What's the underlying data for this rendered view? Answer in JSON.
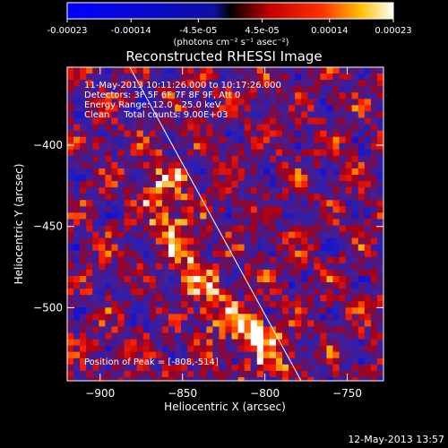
{
  "chart_data": {
    "type": "heatmap",
    "title": "Reconstructed RHESSI Image",
    "xlabel": "Heliocentric X (arcsec)",
    "ylabel": "Heliocentric Y (arcsec)",
    "xlim": [
      -920,
      -728
    ],
    "ylim": [
      -545,
      -352
    ],
    "x_ticks": [
      -900,
      -850,
      -800,
      -750
    ],
    "y_ticks": [
      -400,
      -450,
      -500
    ],
    "colorbar": {
      "range": [
        -0.00023,
        0.00023
      ],
      "tick_values": [
        -0.00023,
        -0.00014,
        -4.5e-05,
        4.5e-05,
        0.00014,
        0.00023
      ],
      "tick_labels": [
        "-0.00023",
        "-0.00014",
        "-4.5e-05",
        "4.5e-05",
        "0.00014",
        "0.00023"
      ],
      "units": "(photons cm⁻² s⁻¹ asec⁻²)"
    },
    "annotations": [
      "11-May-2013 10:11:26.000 to 10:17:26.000",
      "Detectors: 3F 5F 6F 7F 8F 9F, Att 0",
      "Energy Range: 12.0 - 25.0 keV",
      "Clean     Total counts: 9.00E+03"
    ],
    "peak": {
      "label": "Position of Peak = [-808,-514]",
      "x": -808,
      "y": -514
    },
    "limb_line": [
      [
        -882,
        -352
      ],
      [
        -778,
        -545
      ]
    ],
    "emission_ridge": [
      [
        -865,
        -420
      ],
      [
        -855,
        -455
      ],
      [
        -842,
        -485
      ],
      [
        -825,
        -505
      ],
      [
        -810,
        -512
      ],
      [
        -795,
        -530
      ]
    ]
  },
  "footer_date": "12-May-2013 13:57",
  "colors": {
    "background": "#000000",
    "low": "#0000ff",
    "zero": "#000000",
    "mid": "#ff0000",
    "high": "#ffffff"
  }
}
